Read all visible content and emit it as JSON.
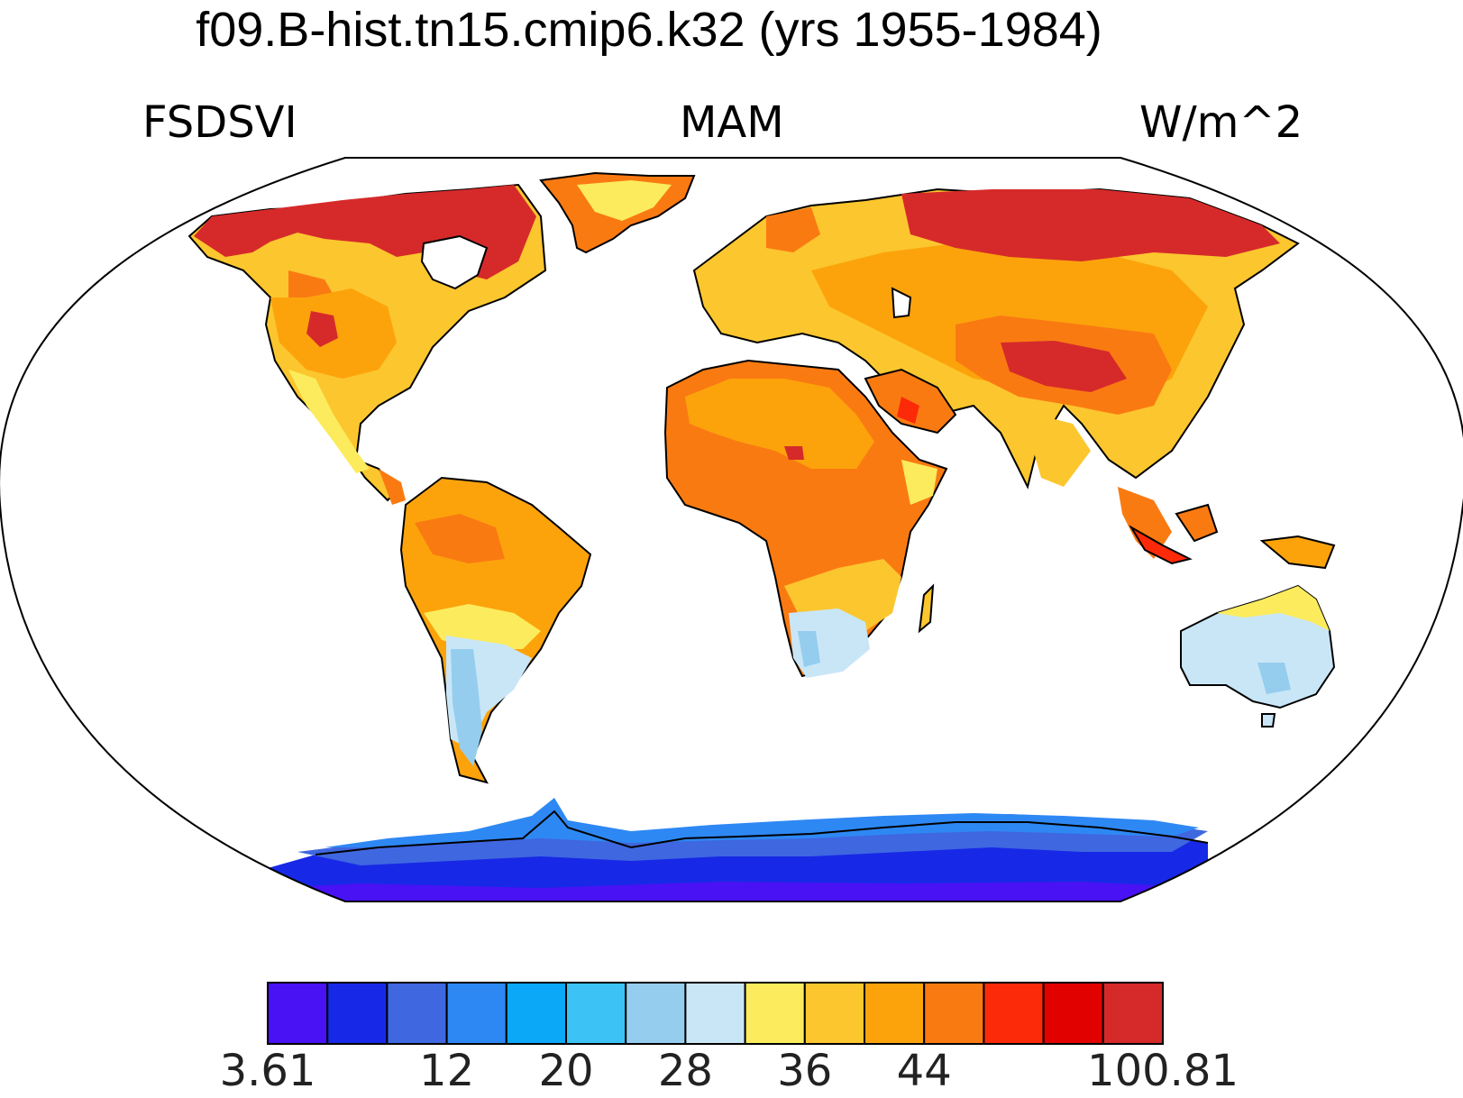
{
  "title": "f09.B-hist.tn15.cmip6.k32 (yrs 1955-1984)",
  "left_label": "FSDSVI",
  "center_label": "MAM",
  "right_label": "W/m^2",
  "colorbar": {
    "colors": [
      "#4812f5",
      "#1729e6",
      "#3f67e0",
      "#2e88f4",
      "#0aa8f7",
      "#3cc2f5",
      "#95cdee",
      "#c9e6f7",
      "#fcec5d",
      "#fcc62e",
      "#fca30c",
      "#fa7a12",
      "#fc2a08",
      "#e10200",
      "#d62a2a"
    ],
    "labels": [
      {
        "text": "3.61",
        "boundary": 0
      },
      {
        "text": "12",
        "boundary": 3
      },
      {
        "text": "20",
        "boundary": 5
      },
      {
        "text": "28",
        "boundary": 7
      },
      {
        "text": "36",
        "boundary": 9
      },
      {
        "text": "44",
        "boundary": 11
      },
      {
        "text": "100.81",
        "boundary": 15
      }
    ]
  }
}
